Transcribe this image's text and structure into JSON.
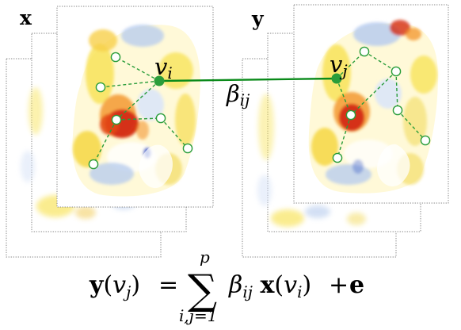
{
  "labels": {
    "x_panel": "x",
    "y_panel": "y",
    "node_i_base": "v",
    "node_i_sub": "i",
    "node_j_base": "v",
    "node_j_sub": "j",
    "edge_base": "β",
    "edge_sub": "ij"
  },
  "equation": {
    "lhs_bold": "y",
    "lhs_open": "(",
    "lhs_var": "v",
    "lhs_sub": "j",
    "lhs_close": ")",
    "equals": "=",
    "sum_symbol": "∑",
    "sum_top": "p",
    "sum_bottom": "i,j=1",
    "beta": "β",
    "beta_sub": "ij",
    "x_bold": "x",
    "x_open": "(",
    "x_var": "v",
    "x_sub": "i",
    "x_close": ")",
    "plus": "+",
    "error_bold": "e"
  },
  "colors": {
    "edge_green": "#0a8a1a",
    "node_fill": "#2a9d3a",
    "hollow_node_fill": "#ffffff",
    "activation_red": "#d42a12",
    "activation_orange": "#f28c1c",
    "activation_yellow": "#f8e35a",
    "deactivation_blue": "#b9cdee",
    "deep_blue": "#2d53c7",
    "slice_border": "#888888"
  },
  "icons": {
    "selected_node": "filled-green-circle",
    "graph_node": "hollow-green-circle",
    "connection": "green-line"
  }
}
